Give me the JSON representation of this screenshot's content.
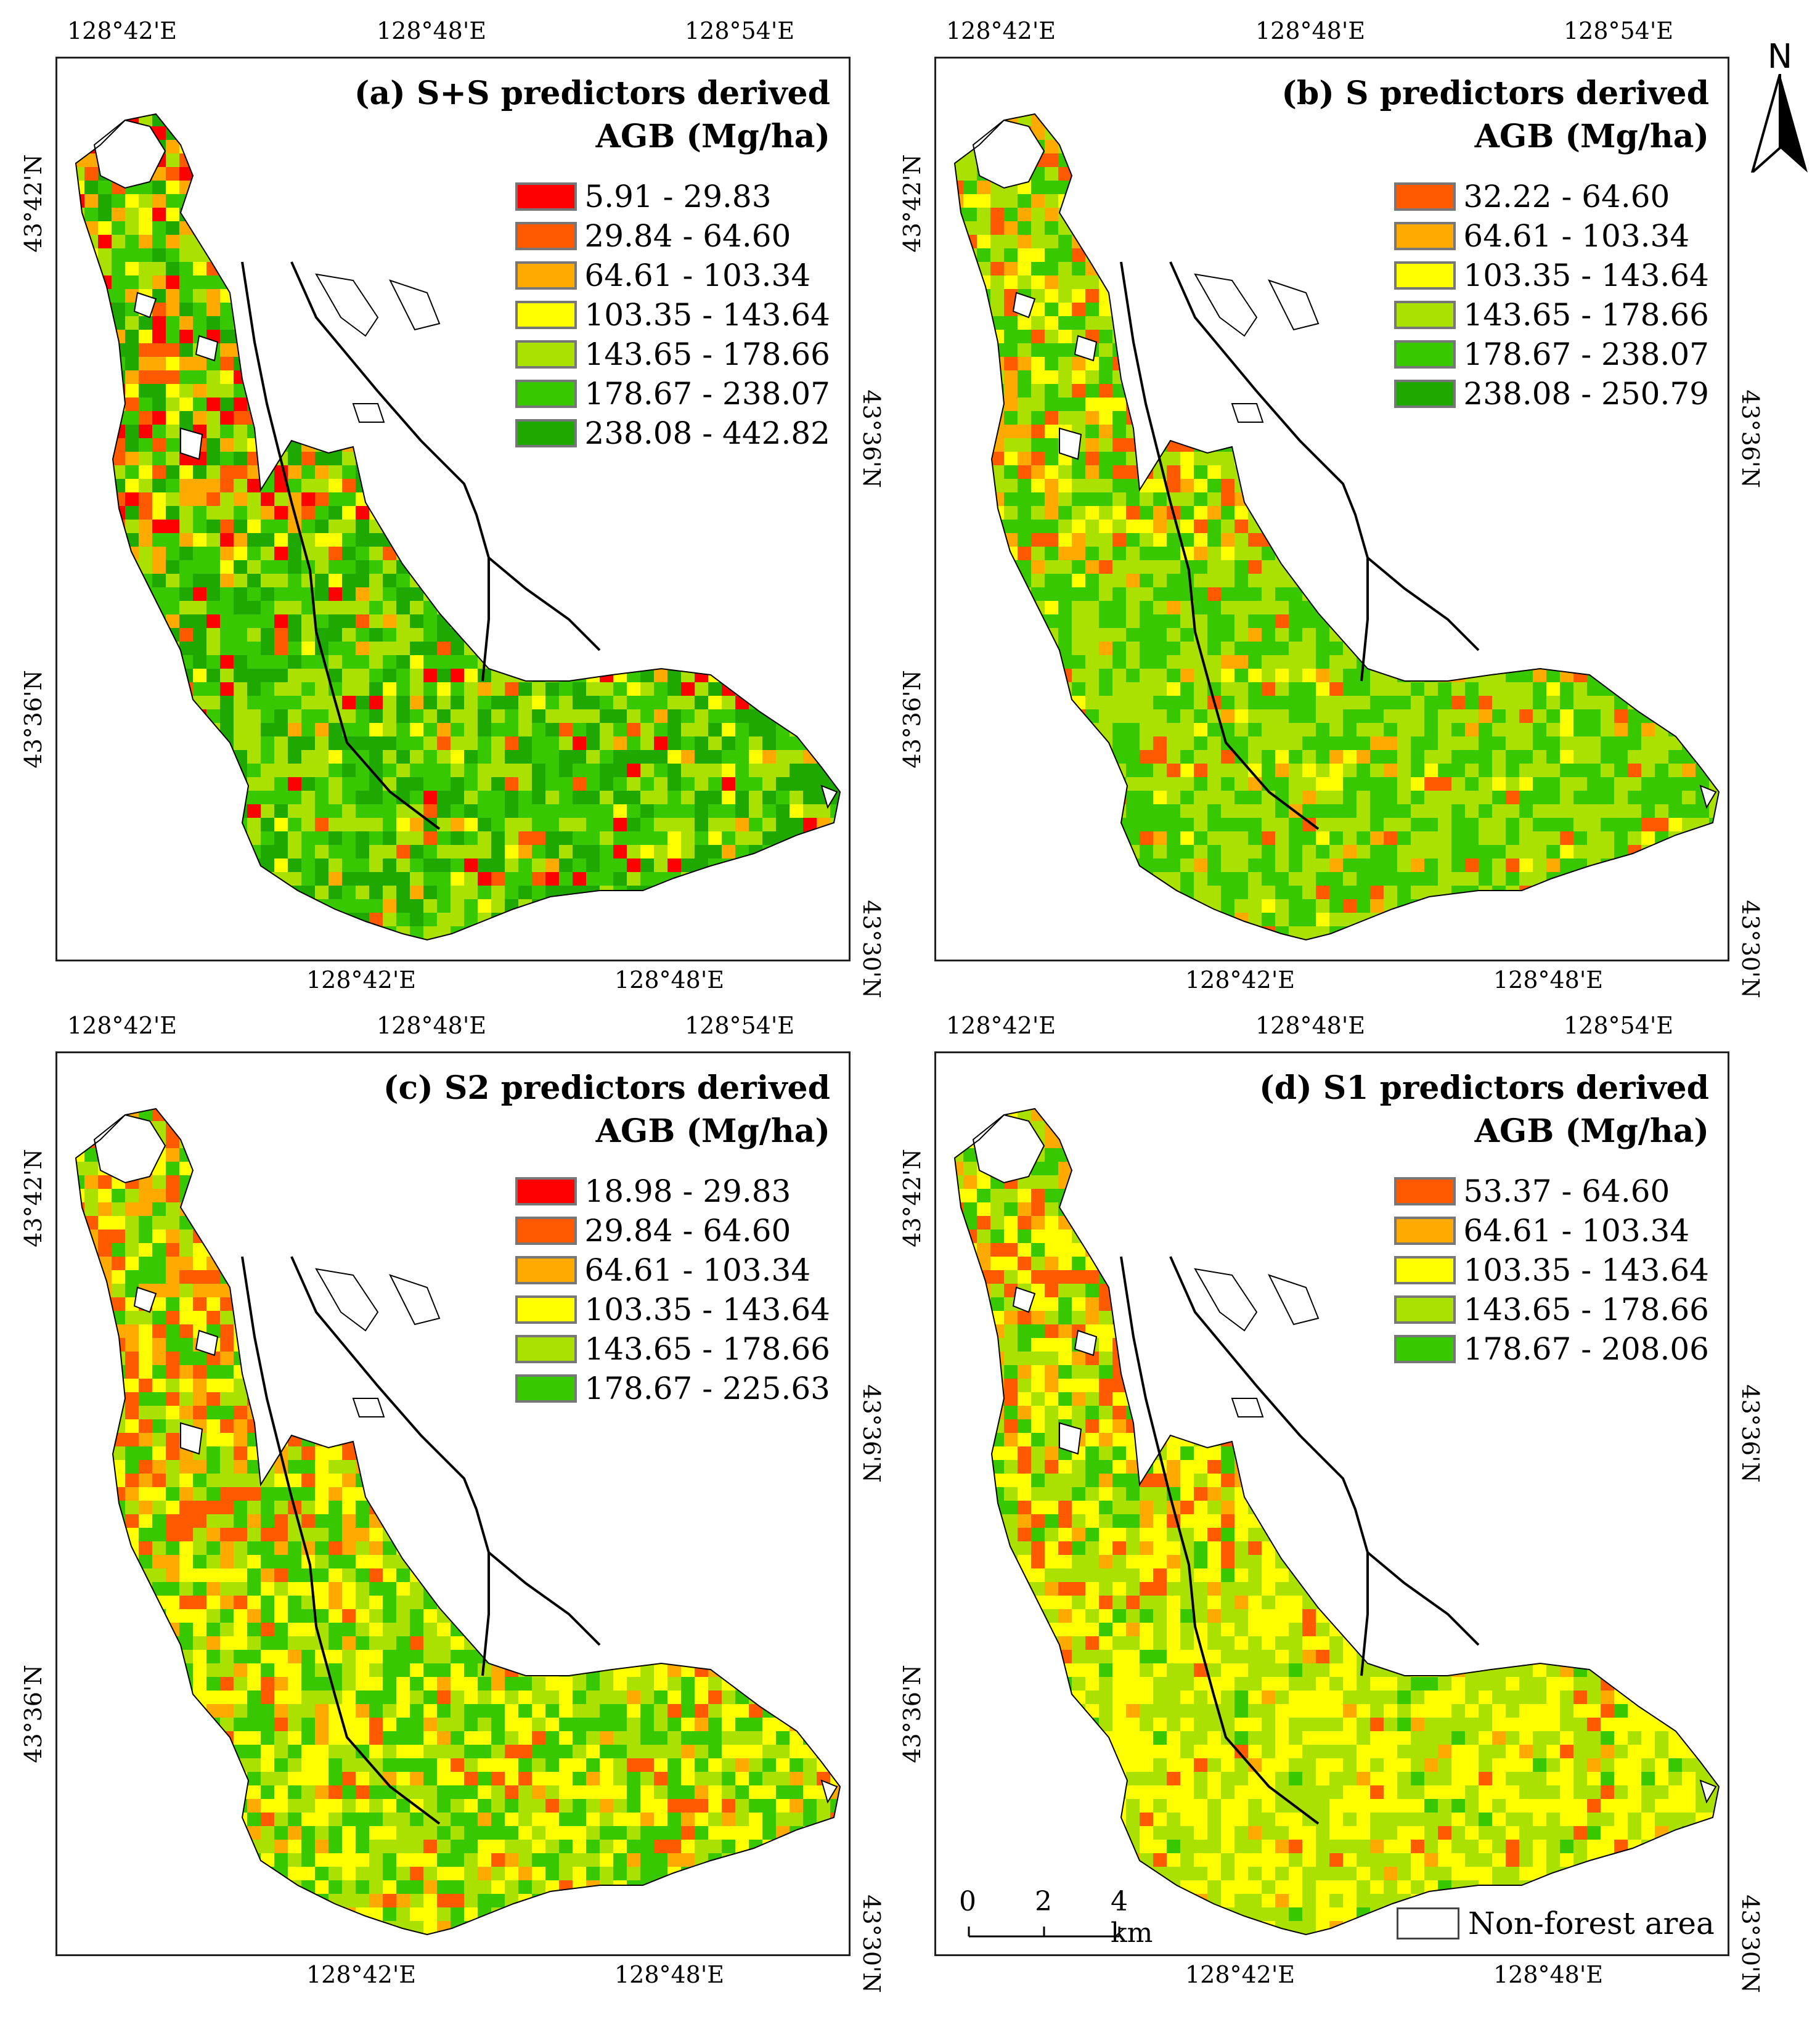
{
  "north_arrow": {
    "label": "N"
  },
  "axis_ticks": {
    "top": [
      "128°42'E",
      "128°48'E",
      "128°54'E"
    ],
    "bottom": [
      "128°42'E",
      "128°48'E"
    ],
    "left": [
      "43°42'N",
      "43°36'N"
    ],
    "right": [
      "43°36'N",
      "43°30'N"
    ]
  },
  "colors": {
    "red": "#ff0000",
    "orange_red": "#ff5a00",
    "orange": "#ffaa00",
    "yellow": "#ffff00",
    "light_green": "#aae100",
    "green": "#38c800",
    "dark_green": "#1fa800",
    "boundary": "#000000",
    "non_forest": "#ffffff"
  },
  "panels": [
    {
      "id": "a",
      "title_line1": "(a) S+S predictors derived",
      "title_line2": "AGB (Mg/ha)",
      "legend": [
        {
          "label": "5.91 - 29.83",
          "color": "#ff0000"
        },
        {
          "label": "29.84 - 64.60",
          "color": "#ff5a00"
        },
        {
          "label": "64.61 - 103.34",
          "color": "#ffaa00"
        },
        {
          "label": "103.35 - 143.64",
          "color": "#ffff00"
        },
        {
          "label": "143.65 - 178.66",
          "color": "#aae100"
        },
        {
          "label": "178.67 - 238.07",
          "color": "#38c800"
        },
        {
          "label": "238.08 - 442.82",
          "color": "#1fa800"
        }
      ],
      "dominant": [
        "#38c800",
        "#aae100",
        "#1fa800"
      ],
      "accents": [
        "#ff0000",
        "#ff5a00",
        "#ffaa00",
        "#ffff00"
      ]
    },
    {
      "id": "b",
      "title_line1": "(b) S predictors derived",
      "title_line2": "AGB (Mg/ha)",
      "legend": [
        {
          "label": "32.22 - 64.60",
          "color": "#ff5a00"
        },
        {
          "label": "64.61 - 103.34",
          "color": "#ffaa00"
        },
        {
          "label": "103.35 - 143.64",
          "color": "#ffff00"
        },
        {
          "label": "143.65 - 178.66",
          "color": "#aae100"
        },
        {
          "label": "178.67 - 238.07",
          "color": "#38c800"
        },
        {
          "label": "238.08 - 250.79",
          "color": "#1fa800"
        }
      ],
      "dominant": [
        "#aae100",
        "#38c800"
      ],
      "accents": [
        "#ffaa00",
        "#ffff00",
        "#ff5a00"
      ]
    },
    {
      "id": "c",
      "title_line1": "(c) S2 predictors derived",
      "title_line2": "AGB (Mg/ha)",
      "legend": [
        {
          "label": "18.98 - 29.83",
          "color": "#ff0000"
        },
        {
          "label": "29.84 - 64.60",
          "color": "#ff5a00"
        },
        {
          "label": "64.61 - 103.34",
          "color": "#ffaa00"
        },
        {
          "label": "103.35 - 143.64",
          "color": "#ffff00"
        },
        {
          "label": "143.65 - 178.66",
          "color": "#aae100"
        },
        {
          "label": "178.67 - 225.63",
          "color": "#38c800"
        }
      ],
      "dominant": [
        "#aae100",
        "#ffff00",
        "#38c800"
      ],
      "accents": [
        "#ffaa00",
        "#ff5a00"
      ]
    },
    {
      "id": "d",
      "title_line1": "(d) S1 predictors derived",
      "title_line2": "AGB (Mg/ha)",
      "legend": [
        {
          "label": "53.37 - 64.60",
          "color": "#ff5a00"
        },
        {
          "label": "64.61 - 103.34",
          "color": "#ffaa00"
        },
        {
          "label": "103.35 - 143.64",
          "color": "#ffff00"
        },
        {
          "label": "143.65 - 178.66",
          "color": "#aae100"
        },
        {
          "label": "178.67 - 208.06",
          "color": "#38c800"
        }
      ],
      "dominant": [
        "#aae100",
        "#ffff00"
      ],
      "accents": [
        "#ffaa00",
        "#38c800",
        "#ff5a00"
      ]
    }
  ],
  "scale_bar": {
    "labels": [
      "0",
      "2",
      "4 km"
    ]
  },
  "non_forest_legend": {
    "label": "Non-forest area"
  }
}
